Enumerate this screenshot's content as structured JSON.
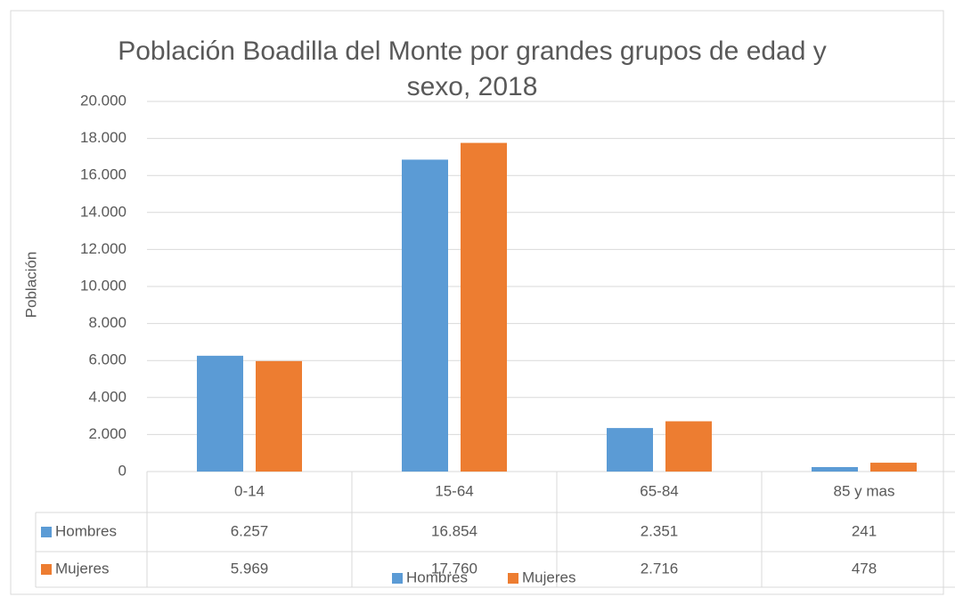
{
  "chart_data": {
    "type": "bar",
    "title": "Población Boadilla del Monte por grandes grupos de edad y sexo, 2018",
    "y_label": "Población",
    "categories": [
      "0-14",
      "15-64",
      "65-84",
      "85 y mas"
    ],
    "series": [
      {
        "name": "Hombres",
        "color": "#5b9bd5",
        "values": [
          6257,
          16854,
          2351,
          241
        ],
        "value_labels": [
          "6.257",
          "16.854",
          "2.351",
          "241"
        ]
      },
      {
        "name": "Mujeres",
        "color": "#ed7d31",
        "values": [
          5969,
          17760,
          2716,
          478
        ],
        "value_labels": [
          "5.969",
          "17.760",
          "2.716",
          "478"
        ]
      }
    ],
    "ylim": [
      0,
      20000
    ],
    "yticks": [
      0,
      {
        "value": 2000,
        "label": "2.000"
      },
      {
        "value": 4000,
        "label": "4.000"
      },
      {
        "value": 6000,
        "label": "6.000"
      },
      {
        "value": 8000,
        "label": "8.000"
      },
      {
        "value": 10000,
        "label": "10.000"
      },
      {
        "value": 12000,
        "label": "12.000"
      },
      {
        "value": 14000,
        "label": "14.000"
      },
      {
        "value": 16000,
        "label": "16.000"
      },
      {
        "value": 18000,
        "label": "18.000"
      },
      {
        "value": 20000,
        "label": "20.000"
      }
    ],
    "grid": true,
    "legend": "bottom"
  }
}
